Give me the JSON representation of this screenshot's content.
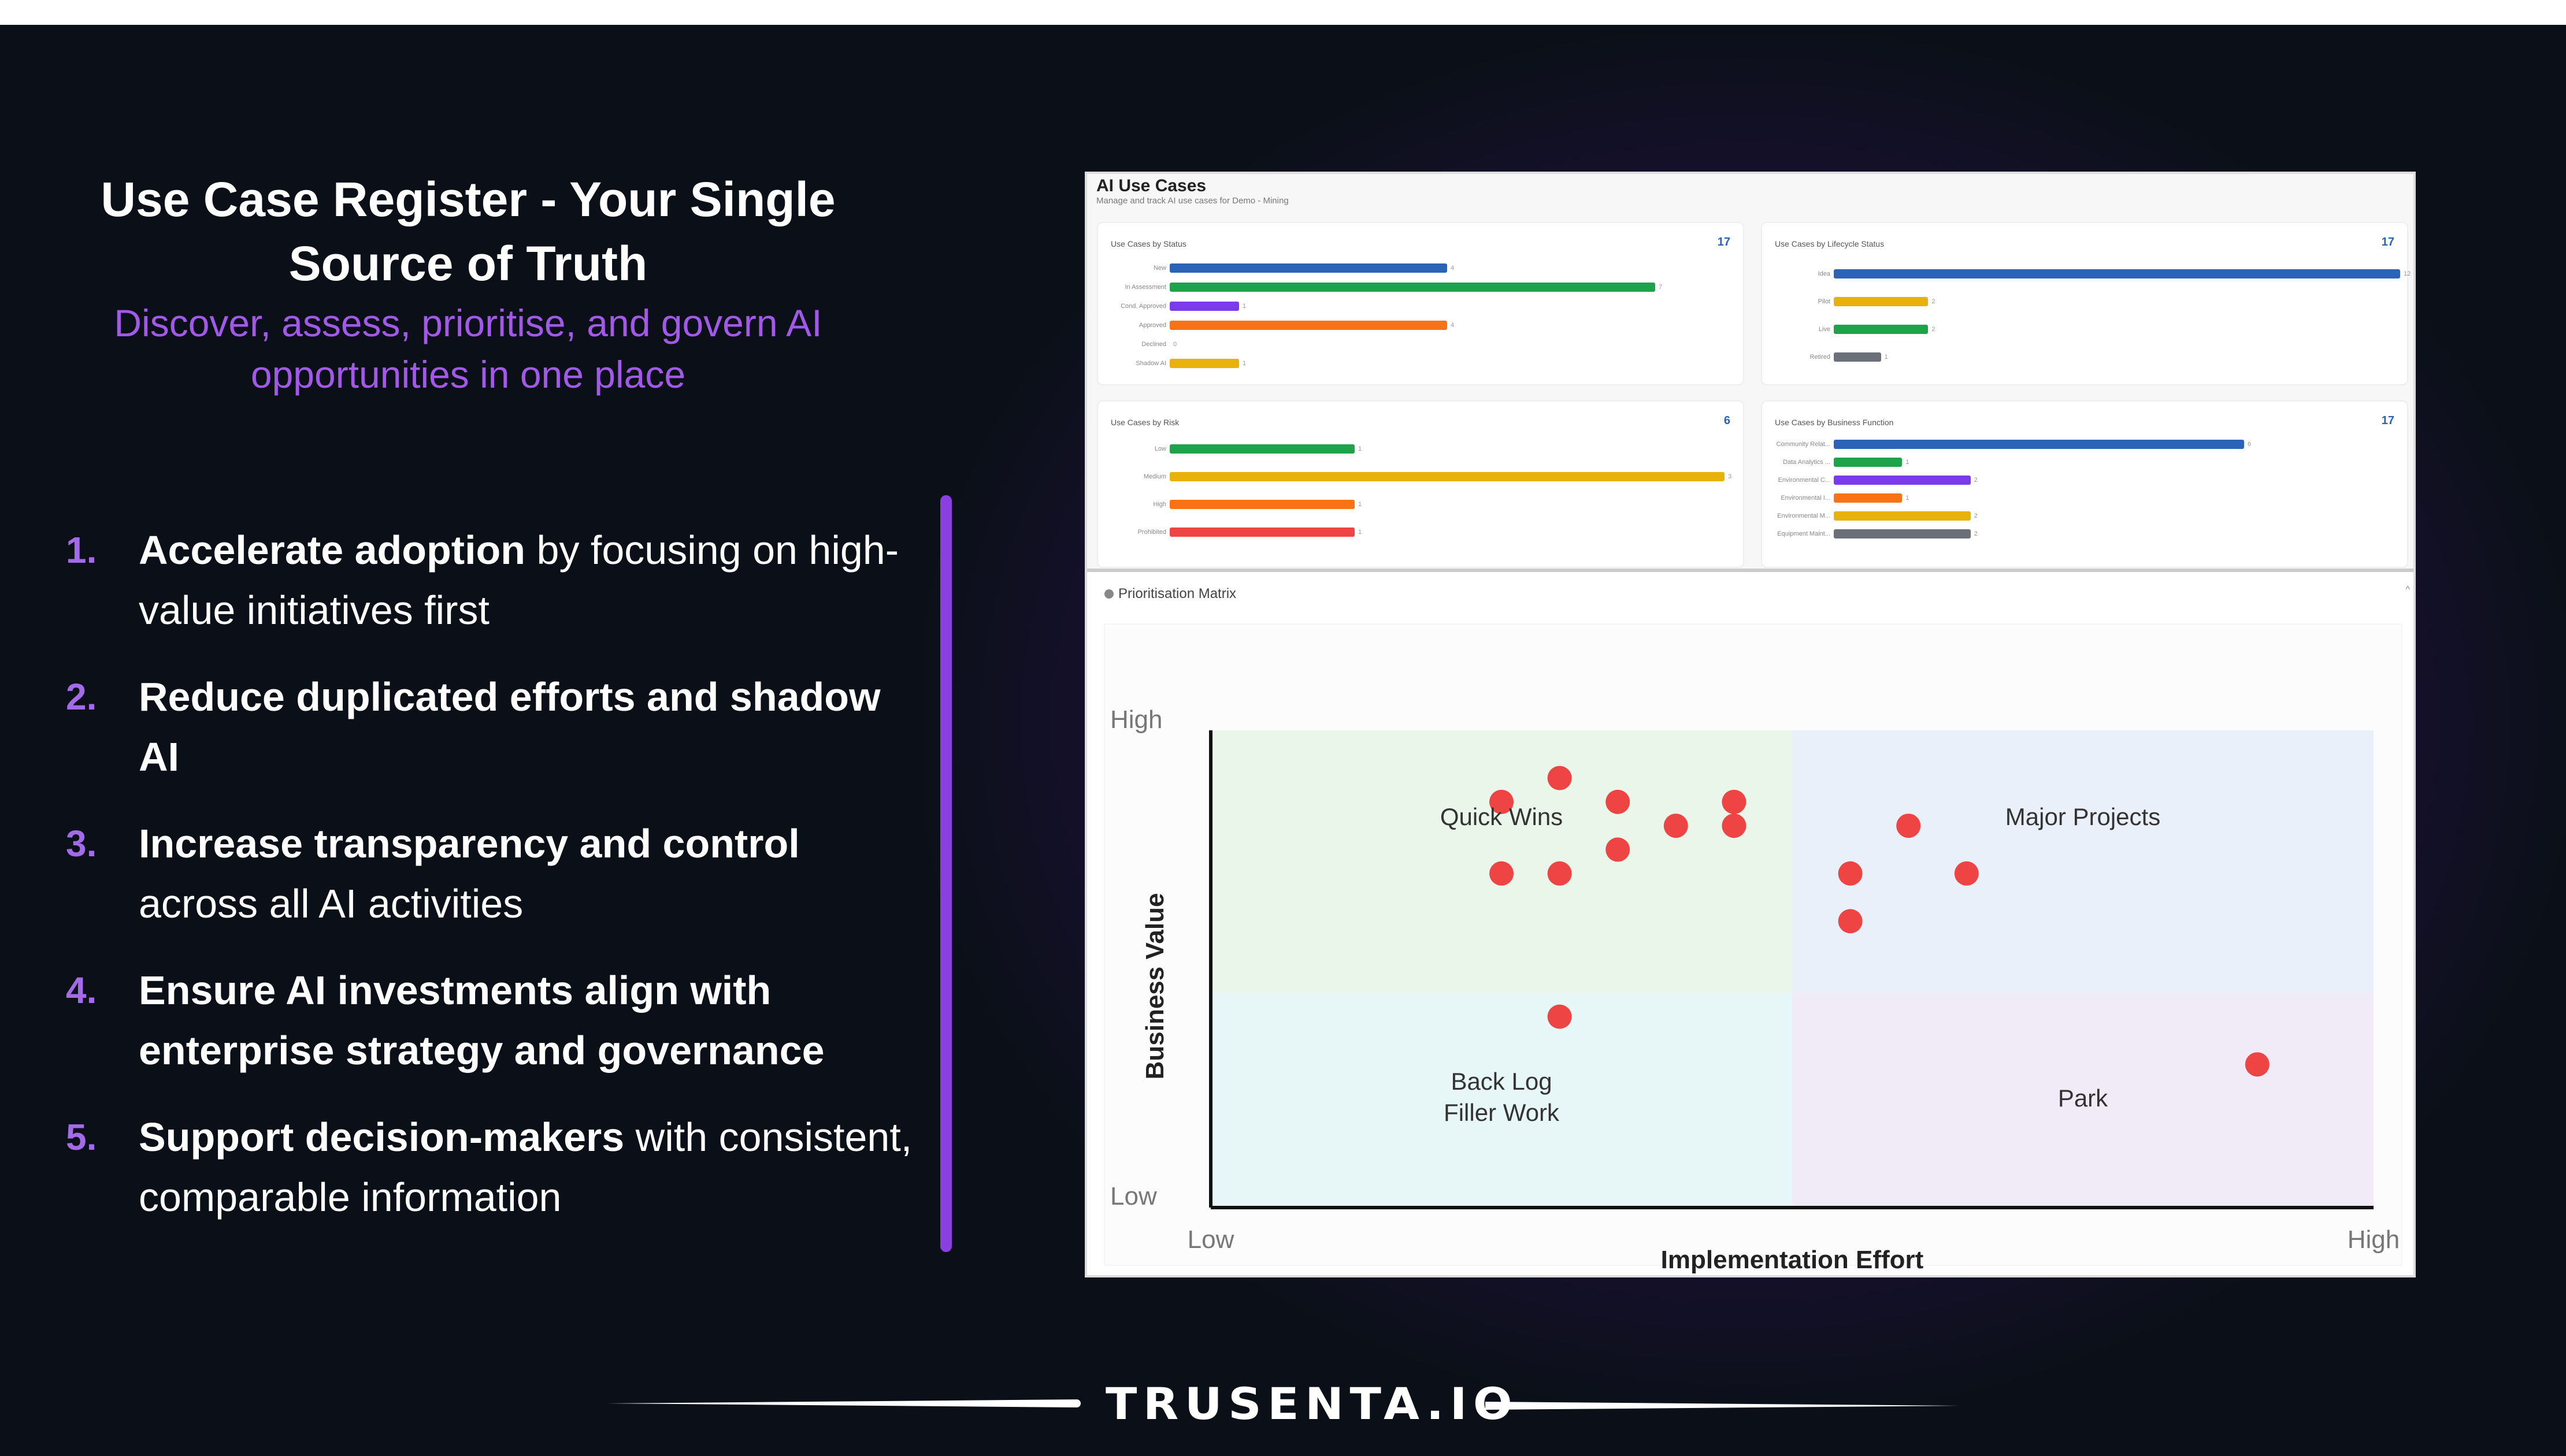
{
  "slide": {
    "title_line1": "Use Case Register - Your Single",
    "title_line2": "Source of Truth",
    "subtitle_line1": "Discover, assess, prioritise, and govern AI",
    "subtitle_line2": "opportunities in one place",
    "accent_color": "#a259e8",
    "points": [
      {
        "num": "1.",
        "bold": "Accelerate adoption",
        "rest": " by focusing on high-value initiatives first"
      },
      {
        "num": "2.",
        "bold": "Reduce duplicated efforts and shadow AI",
        "rest": ""
      },
      {
        "num": "3.",
        "bold": "Increase transparency and control",
        "rest": " across all AI activities"
      },
      {
        "num": "4.",
        "bold": "Ensure AI investments align with enterprise strategy and governance",
        "rest": ""
      },
      {
        "num": "5.",
        "bold": "Support decision-makers",
        "rest": " with consistent, comparable information"
      }
    ],
    "logo": "TRUSENTA.IO"
  },
  "dashboard": {
    "title": "AI Use Cases",
    "subtitle": "Manage and track AI use cases for Demo - Mining",
    "cards": [
      {
        "title": "Use Cases by Status",
        "total": "17",
        "rows": [
          {
            "label": "New",
            "value": 4,
            "color": "#2b63b8"
          },
          {
            "label": "In Assessment",
            "value": 7,
            "color": "#1ea34b"
          },
          {
            "label": "Cond. Approved",
            "value": 1,
            "color": "#7c3aed"
          },
          {
            "label": "Approved",
            "value": 4,
            "color": "#f97316"
          },
          {
            "label": "Declined",
            "value": 0,
            "color": "#999999"
          },
          {
            "label": "Shadow AI",
            "value": 1,
            "color": "#e8b10c"
          }
        ]
      },
      {
        "title": "Use Cases by Lifecycle Status",
        "total": "17",
        "rows": [
          {
            "label": "Idea",
            "value": 12,
            "color": "#2b63b8"
          },
          {
            "label": "Pilot",
            "value": 2,
            "color": "#e8b10c"
          },
          {
            "label": "Live",
            "value": 2,
            "color": "#1ea34b"
          },
          {
            "label": "Retired",
            "value": 1,
            "color": "#6b6f78"
          }
        ]
      },
      {
        "title": "Use Cases by Risk",
        "total": "6",
        "rows": [
          {
            "label": "Low",
            "value": 1,
            "color": "#1ea34b"
          },
          {
            "label": "Medium",
            "value": 3,
            "color": "#e8b10c"
          },
          {
            "label": "High",
            "value": 1,
            "color": "#f97316"
          },
          {
            "label": "Prohibited",
            "value": 1,
            "color": "#ef4444"
          }
        ]
      },
      {
        "title": "Use Cases by Business Function",
        "total": "17",
        "rows": [
          {
            "label": "Community Relat...",
            "value": 6,
            "color": "#2b63b8"
          },
          {
            "label": "Data Analytics ...",
            "value": 1,
            "color": "#1ea34b"
          },
          {
            "label": "Environmental C...",
            "value": 2,
            "color": "#7c3aed"
          },
          {
            "label": "Environmental I...",
            "value": 1,
            "color": "#f97316"
          },
          {
            "label": "Environmental M...",
            "value": 2,
            "color": "#e8b10c"
          },
          {
            "label": "Equipment Maint...",
            "value": 2,
            "color": "#6b6f78"
          }
        ]
      }
    ]
  },
  "chart_data": {
    "type": "scatter",
    "title": "Prioritisation Matrix",
    "xlabel": "Implementation Effort",
    "ylabel": "Business Value",
    "x_tick_labels": [
      "Low",
      "High"
    ],
    "y_tick_labels": [
      "Low",
      "High"
    ],
    "xlim": [
      0,
      20
    ],
    "ylim": [
      0,
      20
    ],
    "split": {
      "x": 10,
      "y": 9
    },
    "quadrants": [
      {
        "label": "Quick Wins",
        "position": "top-left",
        "color": "#e9f6e9"
      },
      {
        "label": "Major Projects",
        "position": "top-right",
        "color": "#eaf0fa"
      },
      {
        "label": "Back Log\nFiller Work",
        "label_line1": "Back Log",
        "label_line2": "Filler Work",
        "position": "bottom-left",
        "color": "#e7f6f6"
      },
      {
        "label": "Park",
        "position": "bottom-right",
        "color": "#f1ebf8"
      }
    ],
    "point_color": "#ef4444",
    "points": [
      {
        "x": 5,
        "y": 17
      },
      {
        "x": 6,
        "y": 18
      },
      {
        "x": 7,
        "y": 17
      },
      {
        "x": 9,
        "y": 17
      },
      {
        "x": 8,
        "y": 16
      },
      {
        "x": 9,
        "y": 16
      },
      {
        "x": 7,
        "y": 15
      },
      {
        "x": 5,
        "y": 14
      },
      {
        "x": 6,
        "y": 14
      },
      {
        "x": 12,
        "y": 16
      },
      {
        "x": 11,
        "y": 14
      },
      {
        "x": 13,
        "y": 14
      },
      {
        "x": 11,
        "y": 12
      },
      {
        "x": 6,
        "y": 8
      },
      {
        "x": 18,
        "y": 6
      }
    ]
  }
}
